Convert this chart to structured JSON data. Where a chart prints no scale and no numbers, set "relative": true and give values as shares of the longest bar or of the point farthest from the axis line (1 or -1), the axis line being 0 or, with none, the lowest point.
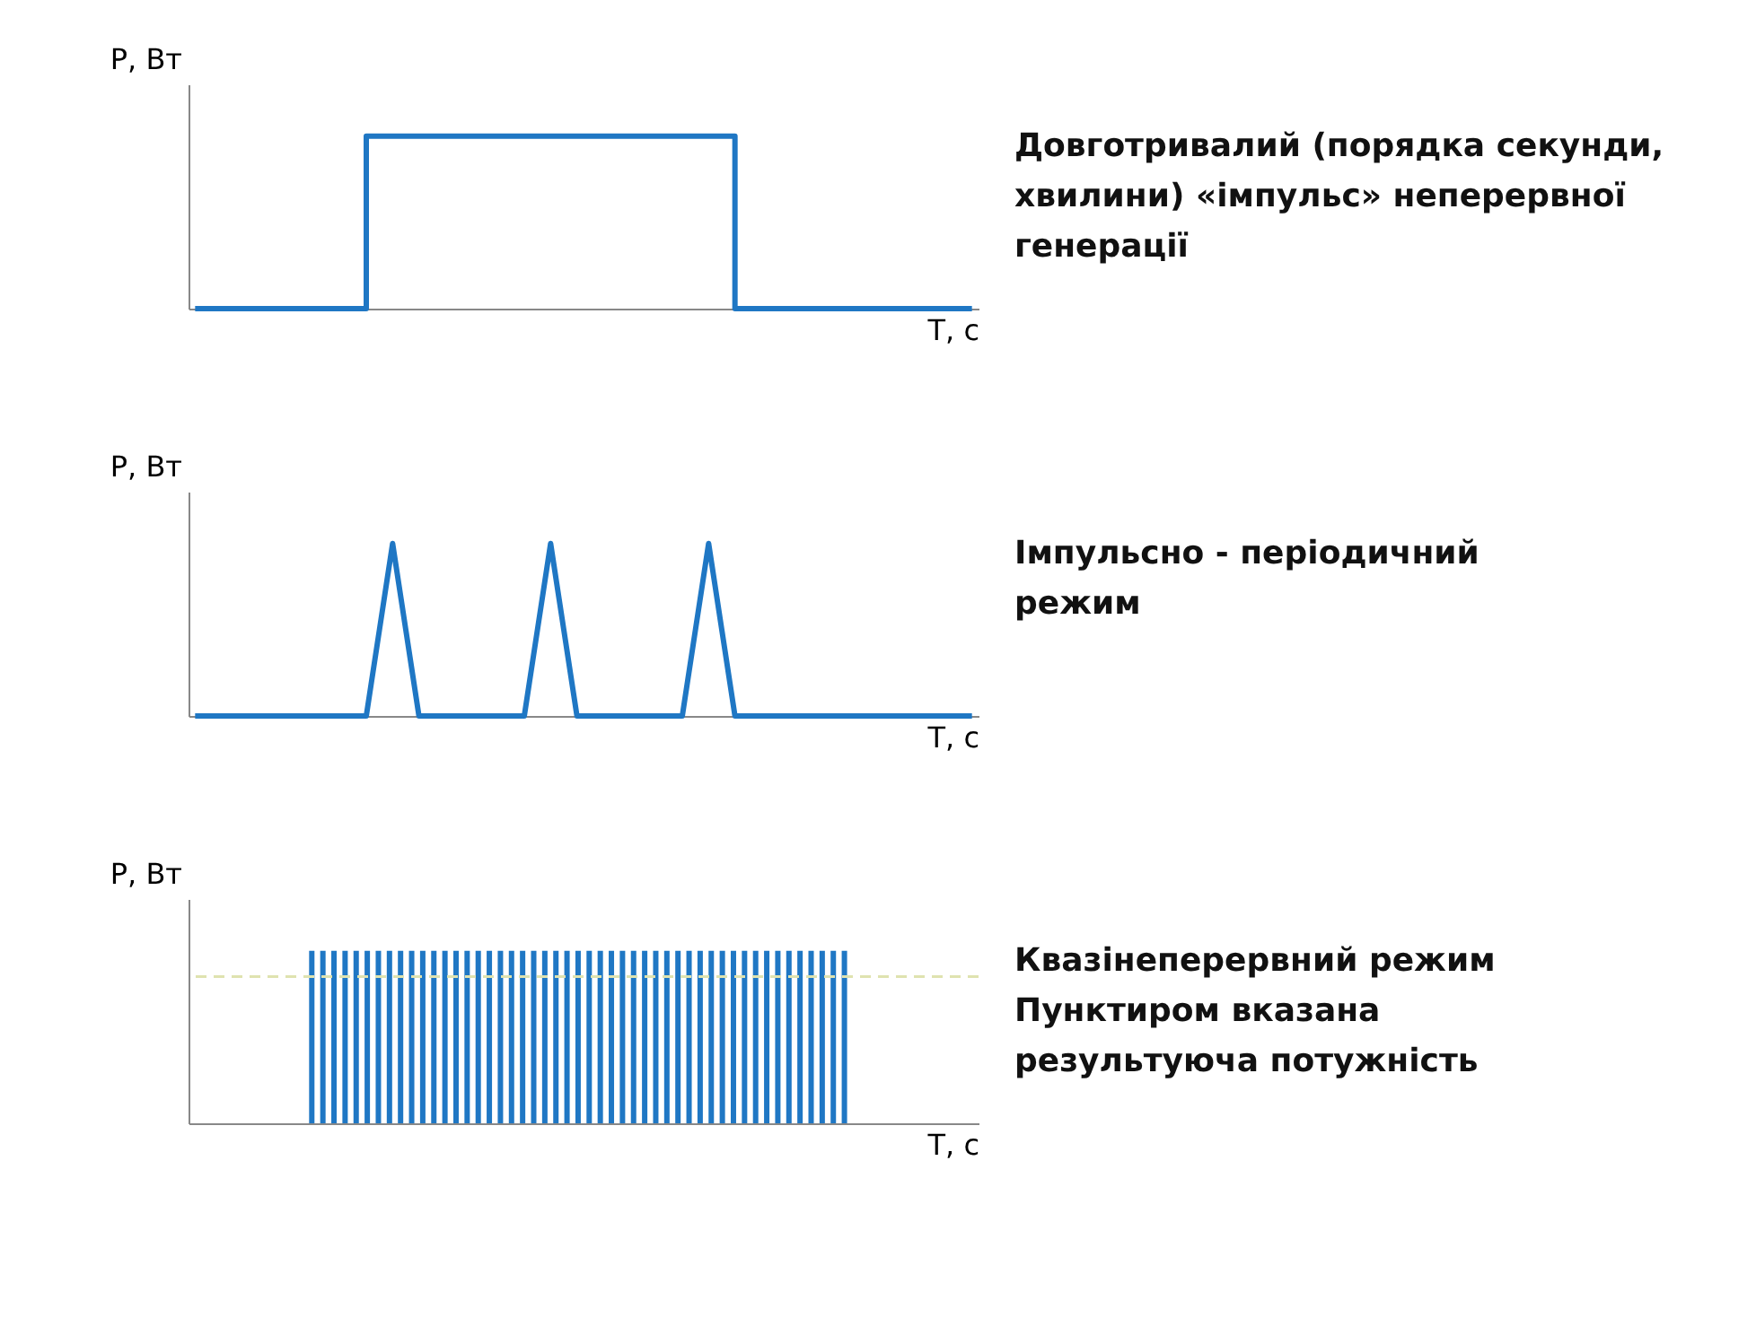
{
  "chart_data": [
    {
      "type": "step",
      "relative": true,
      "xlabel": "T, с",
      "ylabel": "P, Вт",
      "categories": [
        null,
        null,
        null,
        null,
        null,
        null,
        null,
        null,
        null,
        null,
        null,
        null,
        null,
        null,
        null,
        null,
        null,
        null,
        null,
        null,
        null,
        null,
        null,
        null,
        null,
        null,
        null,
        null,
        null,
        null,
        null,
        null,
        null,
        null,
        null,
        null,
        null,
        null,
        null,
        null,
        null,
        null,
        null,
        null,
        null,
        null,
        null,
        null,
        null,
        null,
        null,
        null,
        null,
        null,
        null,
        null,
        null,
        null,
        null,
        null
      ],
      "series": [
        {
          "color": "#1f77c4",
          "values": [
            0,
            0,
            0,
            0,
            0,
            0,
            0,
            0,
            0,
            0,
            0,
            0,
            0,
            1,
            1,
            1,
            1,
            1,
            1,
            1,
            1,
            1,
            1,
            1,
            1,
            1,
            1,
            1,
            1,
            1,
            1,
            1,
            1,
            1,
            1,
            1,
            1,
            1,
            1,
            1,
            1,
            0,
            0,
            0,
            0,
            0,
            0,
            0,
            0,
            0,
            0,
            0,
            0,
            0,
            0,
            0,
            0,
            0,
            0,
            0
          ]
        }
      ],
      "annotations": [
        "Довготривалий (порядка секунди,",
        "хвилини) «імпульс» неперервної",
        "генерації"
      ],
      "grid": false,
      "legend": false,
      "tick_labels": false
    },
    {
      "type": "line",
      "relative": true,
      "xlabel": "T, с",
      "ylabel": "P, Вт",
      "categories": [
        null,
        null,
        null,
        null,
        null,
        null,
        null,
        null,
        null,
        null,
        null,
        null,
        null,
        null,
        null,
        null,
        null,
        null,
        null,
        null,
        null,
        null,
        null,
        null,
        null,
        null,
        null,
        null,
        null,
        null,
        null,
        null,
        null,
        null,
        null,
        null,
        null,
        null,
        null,
        null,
        null,
        null,
        null,
        null,
        null,
        null,
        null,
        null,
        null,
        null,
        null,
        null,
        null,
        null,
        null,
        null,
        null,
        null,
        null,
        null
      ],
      "series": [
        {
          "color": "#1f77c4",
          "values": [
            0,
            0,
            0,
            0,
            0,
            0,
            0,
            0,
            0,
            0,
            0,
            0,
            0,
            0,
            0.5,
            1,
            0.5,
            0,
            0,
            0,
            0,
            0,
            0,
            0,
            0,
            0,
            0.5,
            1,
            0.5,
            0,
            0,
            0,
            0,
            0,
            0,
            0,
            0,
            0,
            0.5,
            1,
            0.5,
            0,
            0,
            0,
            0,
            0,
            0,
            0,
            0,
            0,
            0,
            0,
            0,
            0,
            0,
            0,
            0,
            0,
            0,
            0
          ]
        }
      ],
      "annotations": [
        "Імпульсно - періодичний",
        "режим"
      ],
      "grid": false,
      "legend": false,
      "tick_labels": false
    },
    {
      "type": "bar",
      "relative": true,
      "xlabel": "T, с",
      "ylabel": "P, Вт",
      "categories": [
        null,
        null,
        null,
        null,
        null,
        null,
        null,
        null,
        null,
        null,
        null,
        null,
        null,
        null,
        null,
        null,
        null,
        null,
        null,
        null,
        null,
        null,
        null,
        null,
        null,
        null,
        null,
        null,
        null,
        null,
        null,
        null,
        null,
        null,
        null,
        null,
        null,
        null,
        null,
        null,
        null,
        null,
        null,
        null,
        null,
        null,
        null,
        null,
        null
      ],
      "series": [
        {
          "color": "#1f77c4",
          "values": [
            1,
            1,
            1,
            1,
            1,
            1,
            1,
            1,
            1,
            1,
            1,
            1,
            1,
            1,
            1,
            1,
            1,
            1,
            1,
            1,
            1,
            1,
            1,
            1,
            1,
            1,
            1,
            1,
            1,
            1,
            1,
            1,
            1,
            1,
            1,
            1,
            1,
            1,
            1,
            1,
            1,
            1,
            1,
            1,
            1,
            1,
            1,
            1,
            1
          ]
        }
      ],
      "ref_lines": [
        {
          "axis": "y",
          "value": 0.85,
          "label": null,
          "color": "#dfe3b0",
          "line_style": "dashed"
        }
      ],
      "annotations": [
        "Квазінеперервний режим",
        "Пунктиром вказана",
        "результуюча потужність"
      ],
      "grid": false,
      "legend": false,
      "tick_labels": false
    }
  ]
}
